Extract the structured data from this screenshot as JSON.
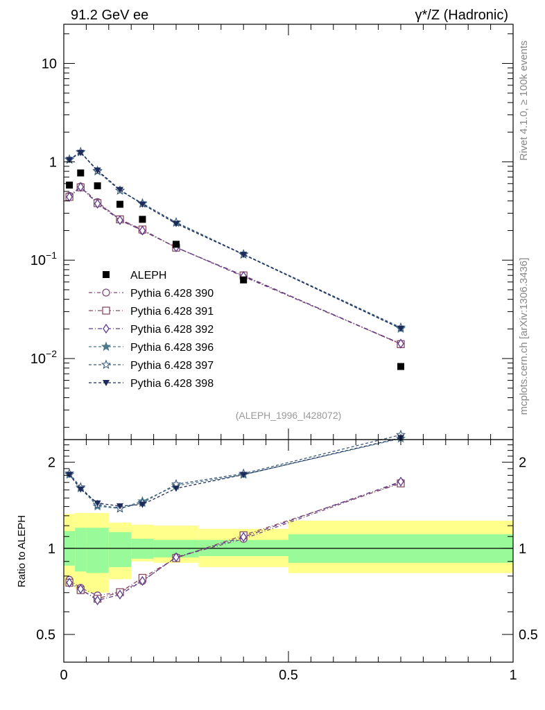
{
  "chart_data": {
    "type": "scatter",
    "title_left": "91.2 GeV ee",
    "title_right": "γ*/Z (Hadronic)",
    "side_label_top": "Rivet 4.1.0, ≥ 100k events",
    "side_label_bottom": "mcplots.cern.ch [arXiv:1306.3436]",
    "analysis_tag": "(ALEPH_1996_I428072)",
    "ratio_ylabel": "Ratio to ALEPH",
    "xlim": [
      0,
      1
    ],
    "x_ticks": [
      {
        "v": 0,
        "label": "0"
      },
      {
        "v": 0.5,
        "label": "0.5"
      },
      {
        "v": 1,
        "label": "1"
      }
    ],
    "main_ylim": [
      0.0015,
      25
    ],
    "main_y_ticks": [
      {
        "v": 10,
        "base": "10",
        "exp": ""
      },
      {
        "v": 1,
        "base": "1",
        "exp": ""
      },
      {
        "v": 0.1,
        "base": "10",
        "exp": "−1"
      },
      {
        "v": 0.01,
        "base": "10",
        "exp": "−2"
      }
    ],
    "ratio_ylim": [
      0.4,
      2.4
    ],
    "ratio_y_ticks": [
      {
        "v": 2,
        "label": "2"
      },
      {
        "v": 1,
        "label": "1"
      },
      {
        "v": 0.5,
        "label": "0.5"
      }
    ],
    "bins": [
      0,
      0.025,
      0.05,
      0.1,
      0.15,
      0.2,
      0.3,
      0.5,
      1.0
    ],
    "band_inner": [
      [
        0.87,
        1.15
      ],
      [
        0.83,
        1.18
      ],
      [
        0.82,
        1.18
      ],
      [
        0.86,
        1.14
      ],
      [
        0.92,
        1.08
      ],
      [
        0.93,
        1.07
      ],
      [
        0.94,
        1.07
      ],
      [
        0.89,
        1.12
      ]
    ],
    "band_outer": [
      [
        0.74,
        1.32
      ],
      [
        0.72,
        1.33
      ],
      [
        0.7,
        1.33
      ],
      [
        0.78,
        1.23
      ],
      [
        0.9,
        1.21
      ],
      [
        0.89,
        1.2
      ],
      [
        0.86,
        1.17
      ],
      [
        0.82,
        1.25
      ]
    ],
    "x": [
      0.0125,
      0.0375,
      0.075,
      0.125,
      0.175,
      0.25,
      0.4,
      0.75
    ],
    "data": {
      "name": "ALEPH",
      "values": [
        0.58,
        0.77,
        0.57,
        0.37,
        0.26,
        0.145,
        0.063,
        0.0083
      ]
    },
    "series": [
      {
        "name": "Pythia 6.428 390",
        "color": "#7a4a78",
        "dash": "5,3,1,3",
        "marker": "circle",
        "values": [
          0.45,
          0.56,
          0.39,
          0.26,
          0.2,
          0.135,
          0.068,
          0.0141
        ]
      },
      {
        "name": "Pythia 6.428 391",
        "color": "#8a4a5e",
        "dash": "6,3,1,3",
        "marker": "square",
        "values": [
          0.44,
          0.55,
          0.38,
          0.26,
          0.205,
          0.134,
          0.07,
          0.014
        ]
      },
      {
        "name": "Pythia 6.428 392",
        "color": "#5c3a8c",
        "dash": "6,3,1,3",
        "marker": "diamond",
        "values": [
          0.44,
          0.555,
          0.375,
          0.255,
          0.2,
          0.135,
          0.069,
          0.0142
        ]
      },
      {
        "name": "Pythia 6.428 396",
        "color": "#4a7a8a",
        "dash": "4,3",
        "marker": "star-filled",
        "values": [
          1.05,
          1.25,
          0.8,
          0.51,
          0.38,
          0.24,
          0.114,
          0.0201
        ]
      },
      {
        "name": "Pythia 6.428 397",
        "color": "#3a5a7a",
        "dash": "4,3",
        "marker": "star-open",
        "values": [
          1.06,
          1.26,
          0.81,
          0.51,
          0.375,
          0.243,
          0.115,
          0.0207
        ]
      },
      {
        "name": "Pythia 6.428 398",
        "color": "#1e2a5a",
        "dash": "4,3",
        "marker": "triangle-down",
        "values": [
          1.05,
          1.24,
          0.82,
          0.52,
          0.37,
          0.235,
          0.114,
          0.0202
        ]
      }
    ]
  }
}
